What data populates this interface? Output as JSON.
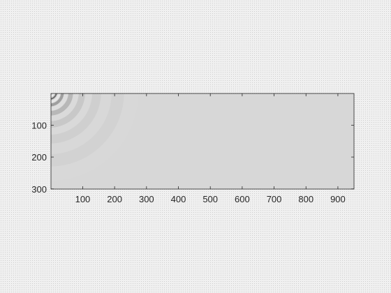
{
  "chart_data": {
    "type": "heatmap",
    "title": "",
    "xlabel": "",
    "ylabel": "",
    "xlim": [
      0.5,
      950.5
    ],
    "ylim": [
      0.5,
      300.5
    ],
    "y_direction": "reverse",
    "colormap": "gray",
    "background_value_color": "#d7d7d7",
    "x_ticks": [
      100,
      200,
      300,
      400,
      500,
      600,
      700,
      800,
      900
    ],
    "x_tick_labels": [
      "100",
      "200",
      "300",
      "400",
      "500",
      "600",
      "700",
      "800",
      "900"
    ],
    "y_ticks": [
      100,
      200,
      300
    ],
    "y_tick_labels": [
      "100",
      "200",
      "300"
    ],
    "pattern": {
      "kind": "concentric-wavefronts",
      "source": [
        1,
        1
      ],
      "rings": [
        {
          "radius": 5,
          "shade": "#000000"
        },
        {
          "radius": 13,
          "shade": "#f6f6f6"
        },
        {
          "radius": 21,
          "shade": "#6f6f6f"
        },
        {
          "radius": 30,
          "shade": "#e7e7e7"
        },
        {
          "radius": 40,
          "shade": "#9f9f9f"
        },
        {
          "radius": 52,
          "shade": "#dedede"
        },
        {
          "radius": 66,
          "shade": "#b8b8b8"
        },
        {
          "radius": 82,
          "shade": "#dadada"
        },
        {
          "radius": 100,
          "shade": "#c8c8c8"
        },
        {
          "radius": 120,
          "shade": "#d9d9d9"
        },
        {
          "radius": 145,
          "shade": "#cfcfcf"
        },
        {
          "radius": 175,
          "shade": "#d8d8d8"
        },
        {
          "radius": 210,
          "shade": "#d2d2d2"
        },
        {
          "radius": 250,
          "shade": "#d8d8d8"
        }
      ]
    },
    "grid": false,
    "legend": "none",
    "axis_color": "#262626"
  }
}
